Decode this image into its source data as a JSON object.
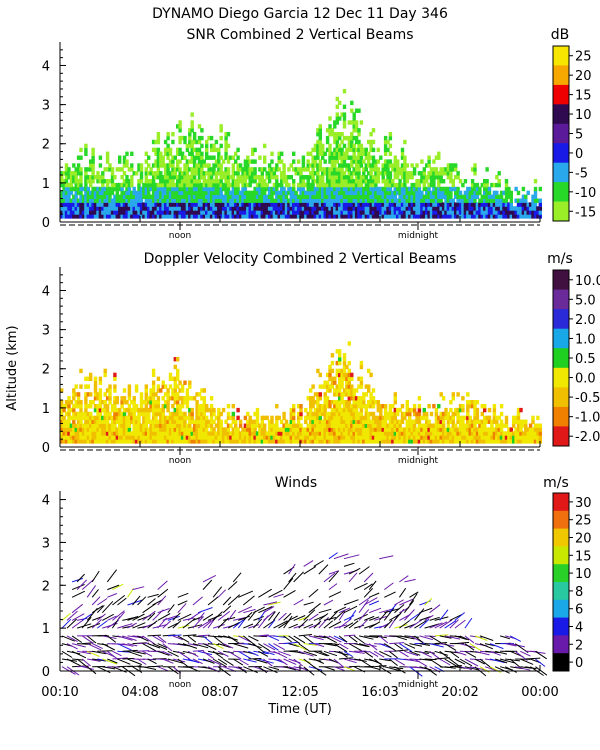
{
  "figure": {
    "title_line1": "DYNAMO Diego Garcia  12 Dec 11 Day 346",
    "shared_ylabel": "Altitude (km)",
    "xlabel": "Time (UT)",
    "time_ticks": [
      "00:10",
      "04:08",
      "08:07",
      "12:05",
      "16:03",
      "20:02",
      "00:00"
    ],
    "day_markers": [
      "noon",
      "midnight"
    ]
  },
  "chart_data": [
    {
      "type": "heatmap",
      "title": "SNR Combined 2 Vertical Beams",
      "yticks": [
        "0",
        "1",
        "2",
        "3",
        "4"
      ],
      "ylim": [
        0,
        4.6
      ],
      "xlim_hours_ut": [
        0.17,
        24.0
      ],
      "colorbar": {
        "unit": "dB",
        "labels": [
          "25",
          "20",
          "15",
          "10",
          "5",
          "0",
          "-5",
          "-10",
          "-15"
        ],
        "colors": [
          "#f6e600",
          "#f6a800",
          "#ee0000",
          "#300a50",
          "#5a1a9a",
          "#1a1ae6",
          "#2aa8ec",
          "#28d828",
          "#9aee28"
        ]
      },
      "top_km_by_hour": [
        [
          0,
          1.8
        ],
        [
          2,
          1.9
        ],
        [
          4,
          1.7
        ],
        [
          6,
          2.7
        ],
        [
          8,
          2.4
        ],
        [
          10,
          1.8
        ],
        [
          12,
          1.6
        ],
        [
          14,
          3.2
        ],
        [
          16,
          2.2
        ],
        [
          18,
          1.8
        ],
        [
          20,
          1.5
        ],
        [
          22,
          1.1
        ],
        [
          24,
          1.0
        ]
      ]
    },
    {
      "type": "heatmap",
      "title": "Doppler Velocity Combined 2 Vertical Beams",
      "yticks": [
        "0",
        "1",
        "2",
        "3",
        "4"
      ],
      "ylim": [
        0,
        4.6
      ],
      "xlim_hours_ut": [
        0.17,
        24.0
      ],
      "colorbar": {
        "unit": "m/s",
        "labels": [
          "10.0",
          "5.0",
          "2.0",
          "1.0",
          "0.5",
          "0.0",
          "-0.5",
          "-1.0",
          "-2.0"
        ],
        "colors": [
          "#401040",
          "#6a2a9a",
          "#2a2ad8",
          "#18a8e8",
          "#20d020",
          "#f0e800",
          "#f0c000",
          "#f08000",
          "#e01818"
        ]
      },
      "top_km_by_hour": [
        [
          0,
          1.4
        ],
        [
          2,
          2.0
        ],
        [
          4,
          1.5
        ],
        [
          6,
          2.3
        ],
        [
          8,
          1.0
        ],
        [
          10,
          0.9
        ],
        [
          12,
          1.0
        ],
        [
          14,
          3.0
        ],
        [
          16,
          1.4
        ],
        [
          18,
          1.2
        ],
        [
          20,
          1.3
        ],
        [
          22,
          1.0
        ],
        [
          24,
          0.8
        ]
      ]
    },
    {
      "type": "scatter",
      "title": "Winds",
      "yticks": [
        "0",
        "1",
        "2",
        "3",
        "4"
      ],
      "ylim": [
        0,
        4.2
      ],
      "xlim_hours_ut": [
        0.17,
        24.0
      ],
      "colorbar": {
        "unit": "m/s",
        "labels": [
          "30",
          "25",
          "20",
          "15",
          "10",
          "8",
          "6",
          "4",
          "2",
          "0"
        ],
        "colors": [
          "#e01818",
          "#f07010",
          "#f0c800",
          "#c8e800",
          "#28d028",
          "#28c8a0",
          "#1aa8e8",
          "#1a1ae6",
          "#6a1aaa",
          "#000000"
        ]
      },
      "top_km_by_hour": [
        [
          0,
          1.8
        ],
        [
          2,
          2.0
        ],
        [
          4,
          1.8
        ],
        [
          6,
          1.7
        ],
        [
          8,
          2.0
        ],
        [
          10,
          2.1
        ],
        [
          12,
          2.3
        ],
        [
          14,
          2.6
        ],
        [
          16,
          2.5
        ],
        [
          18,
          1.7
        ],
        [
          20,
          1.0
        ],
        [
          22,
          0.8
        ],
        [
          24,
          0.6
        ]
      ]
    }
  ]
}
